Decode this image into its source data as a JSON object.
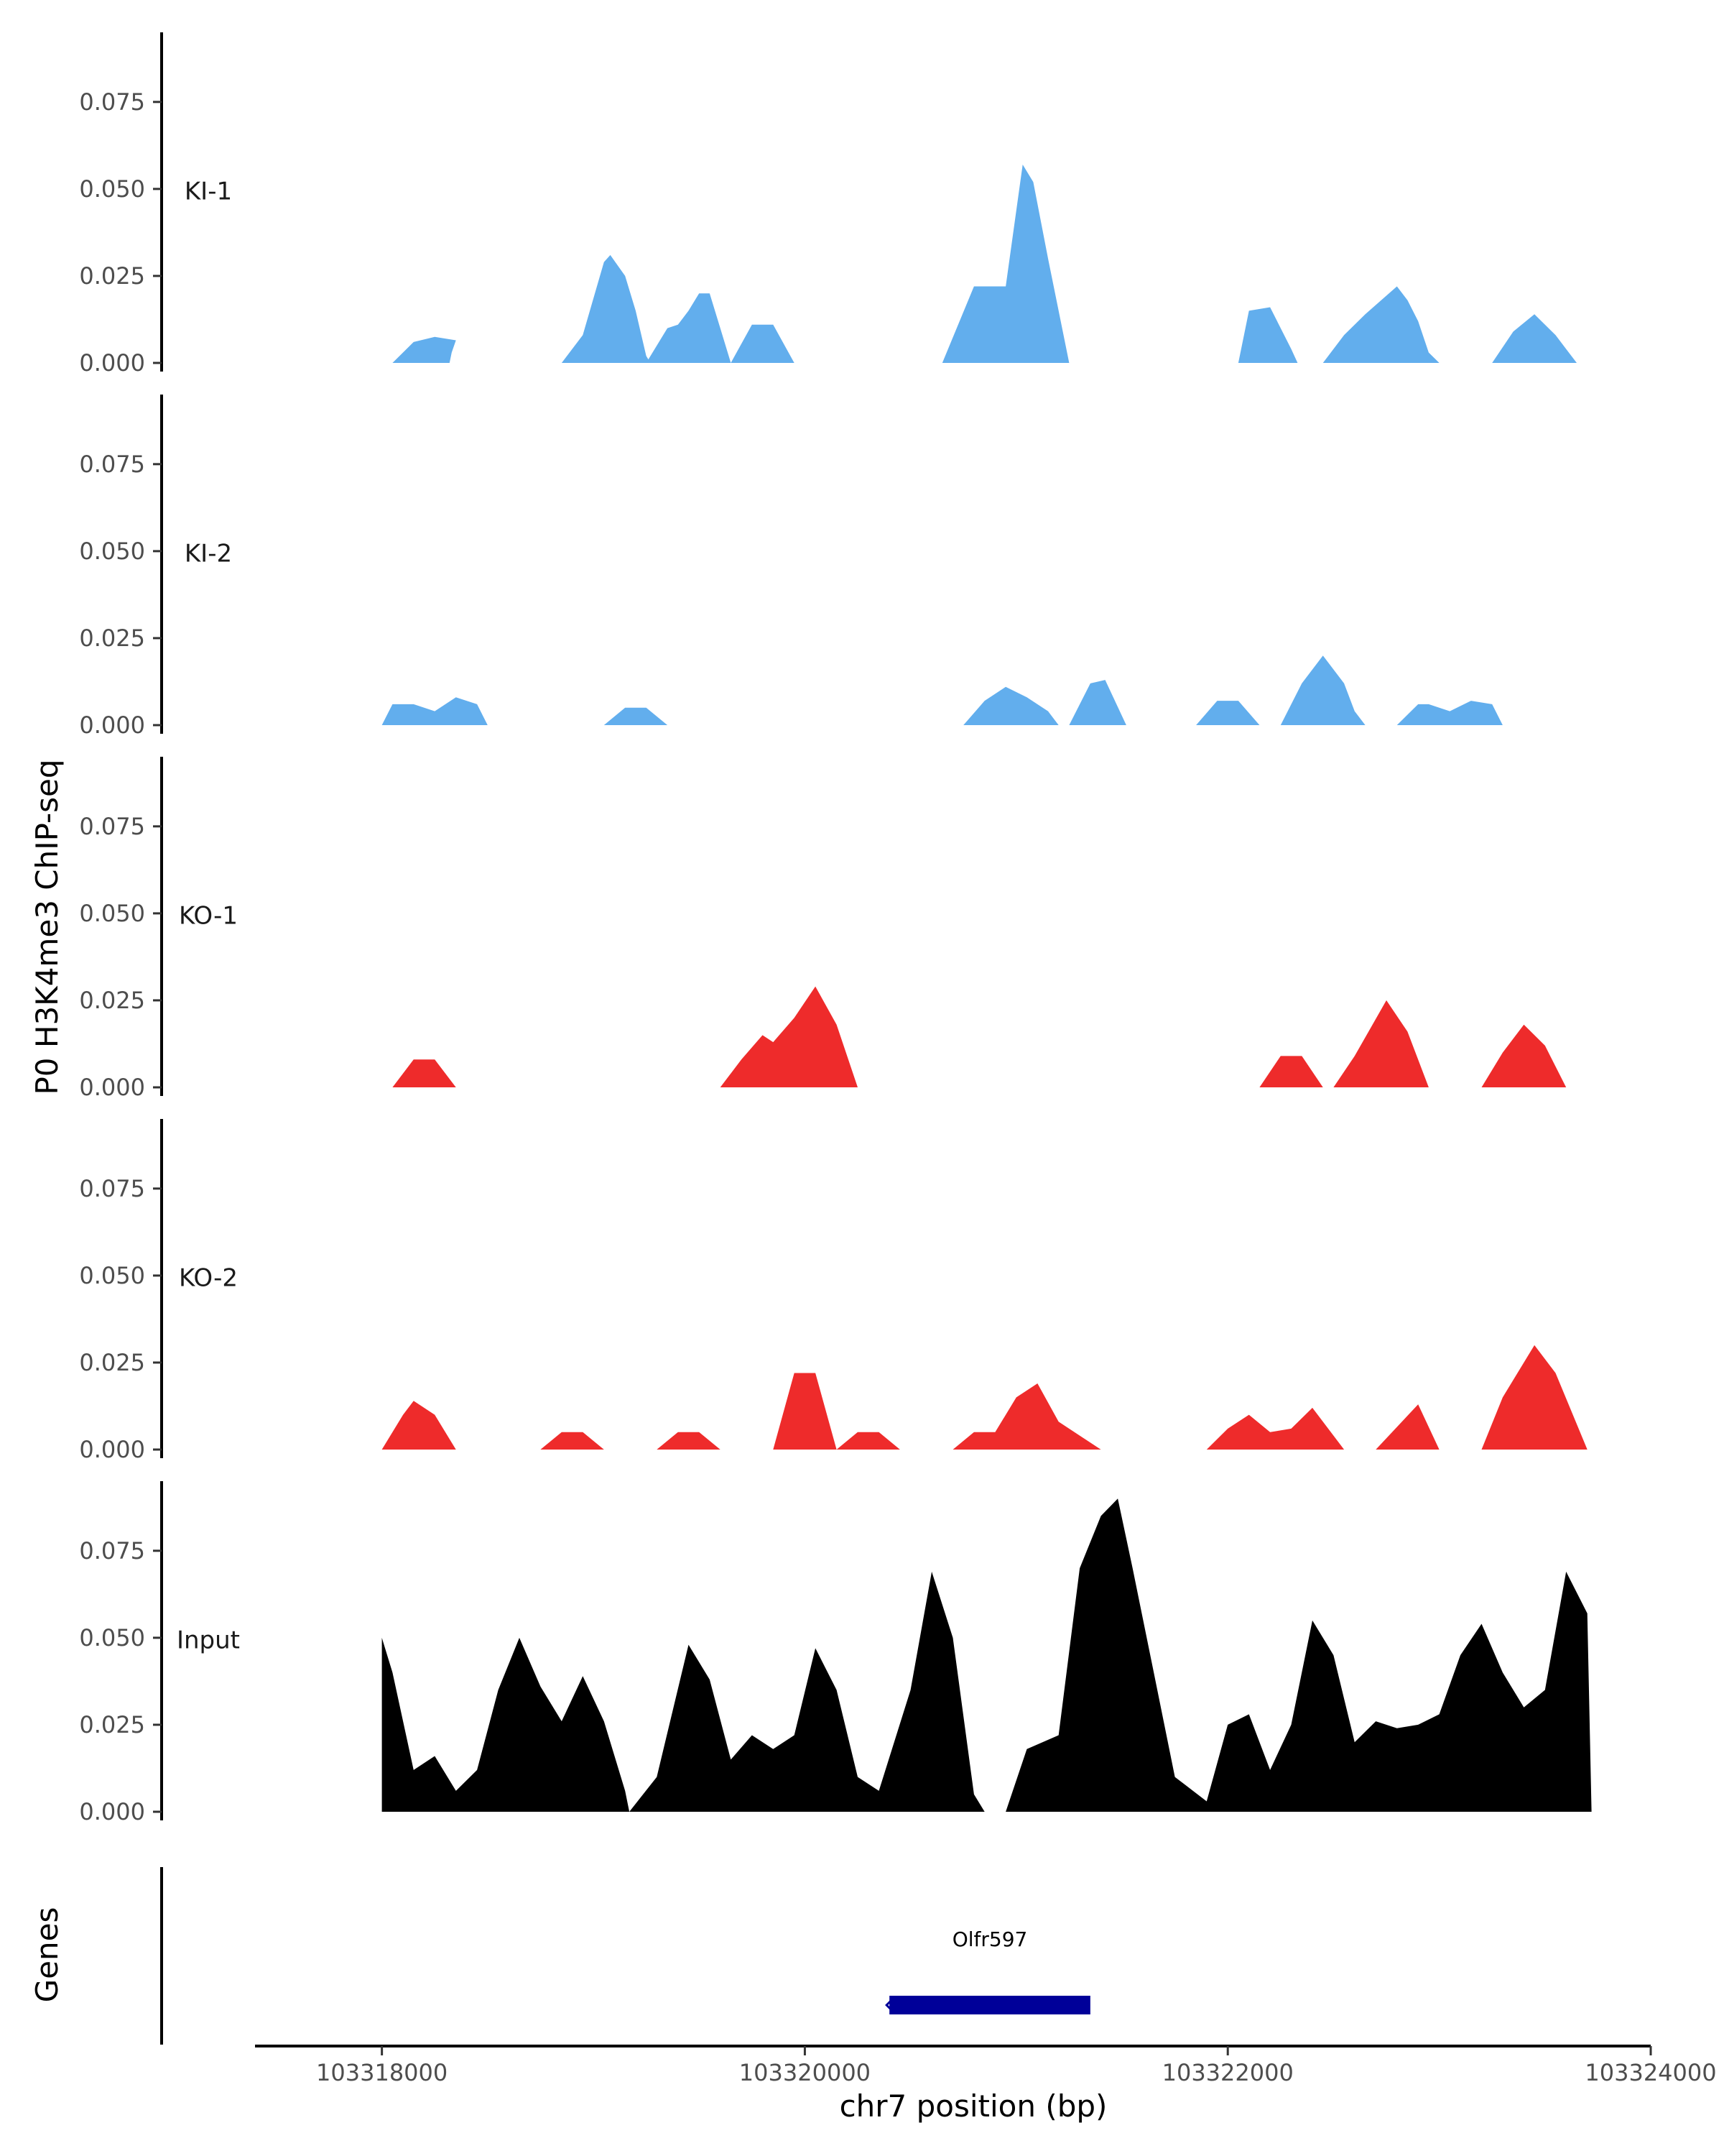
{
  "chart_data": {
    "type": "area",
    "ylabel": "P0 H3K4me3 ChIP-seq",
    "xlabel": "chr7 position (bp)",
    "xlim": [
      103317400,
      103324000
    ],
    "x_ticks": [
      103318000,
      103320000,
      103322000,
      103324000
    ],
    "x_tick_labels": [
      "103318000",
      "103320000",
      "103322000",
      "103324000"
    ],
    "ylim": [
      0,
      0.095
    ],
    "y_ticks": [
      0,
      0.025,
      0.05,
      0.075
    ],
    "y_tick_labels": [
      "0.000",
      "0.025",
      "0.050",
      "0.075"
    ],
    "colors": {
      "KI": "#62aeed",
      "KO": "#ee2b2b",
      "Input": "#000000",
      "gene": "#000099",
      "axis": "#000000"
    },
    "tracks": [
      {
        "name": "KI-1",
        "color": "#62aeed",
        "segments": [
          [
            [
              103318050,
              0
            ],
            [
              103318150,
              0.006
            ],
            [
              103318250,
              0.0075
            ],
            [
              103318350,
              0.0065
            ],
            [
              103318330,
              0.003
            ],
            [
              103318320,
              0
            ]
          ],
          [
            [
              103318850,
              0
            ],
            [
              103318950,
              0.008
            ],
            [
              103319050,
              0.029
            ],
            [
              103319080,
              0.031
            ],
            [
              103319150,
              0.025
            ],
            [
              103319200,
              0.015
            ],
            [
              103319250,
              0.002
            ],
            [
              103319270,
              0
            ]
          ],
          [
            [
              103319250,
              0
            ],
            [
              103319350,
              0.01
            ],
            [
              103319400,
              0.011
            ],
            [
              103319450,
              0.015
            ],
            [
              103319500,
              0.02
            ],
            [
              103319550,
              0.02
            ],
            [
              103319600,
              0.01
            ],
            [
              103319650,
              0
            ]
          ],
          [
            [
              103319650,
              0
            ],
            [
              103319750,
              0.011
            ],
            [
              103319850,
              0.011
            ],
            [
              103319950,
              0
            ]
          ],
          [
            [
              103320650,
              0
            ],
            [
              103320800,
              0.022
            ],
            [
              103320950,
              0.022
            ],
            [
              103321030,
              0.057
            ],
            [
              103321080,
              0.052
            ],
            [
              103321150,
              0.03
            ],
            [
              103321250,
              0
            ]
          ],
          [
            [
              103322050,
              0
            ],
            [
              103322100,
              0.015
            ],
            [
              103322200,
              0.016
            ],
            [
              103322300,
              0.004
            ],
            [
              103322330,
              0
            ]
          ],
          [
            [
              103322450,
              0
            ],
            [
              103322550,
              0.008
            ],
            [
              103322650,
              0.014
            ],
            [
              103322800,
              0.022
            ],
            [
              103322850,
              0.018
            ],
            [
              103322900,
              0.012
            ],
            [
              103322950,
              0.003
            ],
            [
              103323000,
              0
            ]
          ],
          [
            [
              103323250,
              0
            ],
            [
              103323350,
              0.009
            ],
            [
              103323450,
              0.014
            ],
            [
              103323550,
              0.008
            ],
            [
              103323600,
              0.004
            ],
            [
              103323650,
              0
            ]
          ]
        ]
      },
      {
        "name": "KI-2",
        "color": "#62aeed",
        "segments": [
          [
            [
              103318000,
              0
            ],
            [
              103318050,
              0.006
            ],
            [
              103318150,
              0.006
            ],
            [
              103318250,
              0.004
            ],
            [
              103318350,
              0.008
            ],
            [
              103318450,
              0.006
            ],
            [
              103318500,
              0
            ]
          ],
          [
            [
              103319050,
              0
            ],
            [
              103319150,
              0.005
            ],
            [
              103319250,
              0.005
            ],
            [
              103319350,
              0
            ]
          ],
          [
            [
              103320750,
              0
            ],
            [
              103320850,
              0.007
            ],
            [
              103320950,
              0.011
            ],
            [
              103321050,
              0.008
            ],
            [
              103321150,
              0.004
            ],
            [
              103321200,
              0
            ]
          ],
          [
            [
              103321250,
              0
            ],
            [
              103321350,
              0.012
            ],
            [
              103321420,
              0.013
            ],
            [
              103321520,
              0
            ]
          ],
          [
            [
              103321850,
              0
            ],
            [
              103321950,
              0.007
            ],
            [
              103322050,
              0.007
            ],
            [
              103322150,
              0
            ]
          ],
          [
            [
              103322250,
              0
            ],
            [
              103322350,
              0.012
            ],
            [
              103322450,
              0.02
            ],
            [
              103322550,
              0.012
            ],
            [
              103322600,
              0.004
            ],
            [
              103322650,
              0
            ]
          ],
          [
            [
              103322800,
              0
            ],
            [
              103322900,
              0.006
            ],
            [
              103322950,
              0.006
            ],
            [
              103323050,
              0.004
            ],
            [
              103323150,
              0.007
            ],
            [
              103323250,
              0.006
            ],
            [
              103323300,
              0
            ]
          ]
        ]
      },
      {
        "name": "KO-1",
        "color": "#ee2b2b",
        "segments": [
          [
            [
              103318050,
              0
            ],
            [
              103318150,
              0.008
            ],
            [
              103318250,
              0.008
            ],
            [
              103318350,
              0
            ]
          ],
          [
            [
              103319600,
              0
            ],
            [
              103319700,
              0.008
            ],
            [
              103319800,
              0.015
            ],
            [
              103319850,
              0.013
            ],
            [
              103319950,
              0.02
            ],
            [
              103320050,
              0.029
            ],
            [
              103320150,
              0.018
            ],
            [
              103320250,
              0
            ]
          ],
          [
            [
              103322150,
              0
            ],
            [
              103322250,
              0.009
            ],
            [
              103322350,
              0.009
            ],
            [
              103322450,
              0
            ]
          ],
          [
            [
              103322500,
              0
            ],
            [
              103322600,
              0.009
            ],
            [
              103322750,
              0.025
            ],
            [
              103322850,
              0.016
            ],
            [
              103322950,
              0
            ]
          ],
          [
            [
              103323200,
              0
            ],
            [
              103323300,
              0.01
            ],
            [
              103323400,
              0.018
            ],
            [
              103323500,
              0.012
            ],
            [
              103323600,
              0
            ]
          ]
        ]
      },
      {
        "name": "KO-2",
        "color": "#ee2b2b",
        "segments": [
          [
            [
              103318000,
              0
            ],
            [
              103318100,
              0.01
            ],
            [
              103318150,
              0.014
            ],
            [
              103318250,
              0.01
            ],
            [
              103318350,
              0
            ]
          ],
          [
            [
              103318750,
              0
            ],
            [
              103318850,
              0.005
            ],
            [
              103318950,
              0.005
            ],
            [
              103319050,
              0
            ]
          ],
          [
            [
              103319300,
              0
            ],
            [
              103319400,
              0.005
            ],
            [
              103319500,
              0.005
            ],
            [
              103319600,
              0
            ]
          ],
          [
            [
              103319850,
              0
            ],
            [
              103319950,
              0.022
            ],
            [
              103320050,
              0.022
            ],
            [
              103320150,
              0
            ]
          ],
          [
            [
              103320150,
              0
            ],
            [
              103320250,
              0.005
            ],
            [
              103320350,
              0.005
            ],
            [
              103320450,
              0
            ]
          ],
          [
            [
              103320700,
              0
            ],
            [
              103320800,
              0.005
            ],
            [
              103320900,
              0.005
            ],
            [
              103321000,
              0.015
            ],
            [
              103321100,
              0.019
            ],
            [
              103321200,
              0.008
            ],
            [
              103321300,
              0.004
            ],
            [
              103321400,
              0
            ]
          ],
          [
            [
              103321900,
              0
            ],
            [
              103322000,
              0.006
            ],
            [
              103322100,
              0.01
            ],
            [
              103322200,
              0.005
            ],
            [
              103322300,
              0.006
            ],
            [
              103322400,
              0.012
            ],
            [
              103322500,
              0.004
            ],
            [
              103322550,
              0
            ]
          ],
          [
            [
              103322700,
              0
            ],
            [
              103322900,
              0.013
            ],
            [
              103323000,
              0
            ]
          ],
          [
            [
              103323200,
              0
            ],
            [
              103323300,
              0.015
            ],
            [
              103323450,
              0.03
            ],
            [
              103323550,
              0.022
            ],
            [
              103323700,
              0
            ]
          ]
        ]
      },
      {
        "name": "Input",
        "color": "#000000",
        "segments": [
          [
            [
              103318000,
              0
            ],
            [
              103318000,
              0.05
            ],
            [
              103318050,
              0.04
            ],
            [
              103318150,
              0.012
            ],
            [
              103318250,
              0.016
            ],
            [
              103318350,
              0.006
            ],
            [
              103318450,
              0.012
            ],
            [
              103318550,
              0.035
            ],
            [
              103318650,
              0.05
            ],
            [
              103318750,
              0.036
            ],
            [
              103318850,
              0.026
            ],
            [
              103318950,
              0.039
            ],
            [
              103319050,
              0.026
            ],
            [
              103319150,
              0.006
            ],
            [
              103319170,
              0
            ]
          ],
          [
            [
              103319170,
              0
            ],
            [
              103319300,
              0.01
            ],
            [
              103319450,
              0.048
            ],
            [
              103319550,
              0.038
            ],
            [
              103319650,
              0.015
            ],
            [
              103319750,
              0.022
            ],
            [
              103319850,
              0.018
            ],
            [
              103319950,
              0.022
            ],
            [
              103320050,
              0.047
            ],
            [
              103320150,
              0.035
            ],
            [
              103320250,
              0.01
            ],
            [
              103320350,
              0.006
            ],
            [
              103320500,
              0.035
            ],
            [
              103320600,
              0.069
            ],
            [
              103320700,
              0.05
            ],
            [
              103320800,
              0.005
            ],
            [
              103320850,
              0
            ]
          ],
          [
            [
              103320950,
              0
            ],
            [
              103321050,
              0.018
            ],
            [
              103321200,
              0.022
            ],
            [
              103321300,
              0.07
            ],
            [
              103321400,
              0.085
            ],
            [
              103321480,
              0.09
            ],
            [
              103321550,
              0.07
            ],
            [
              103321650,
              0.04
            ],
            [
              103321750,
              0.01
            ],
            [
              103321900,
              0.003
            ],
            [
              103322000,
              0.025
            ],
            [
              103322100,
              0.028
            ],
            [
              103322200,
              0.012
            ],
            [
              103322300,
              0.025
            ],
            [
              103322400,
              0.055
            ],
            [
              103322500,
              0.045
            ],
            [
              103322600,
              0.02
            ],
            [
              103322700,
              0.026
            ],
            [
              103322800,
              0.024
            ],
            [
              103322900,
              0.025
            ],
            [
              103323000,
              0.028
            ],
            [
              103323100,
              0.045
            ],
            [
              103323200,
              0.054
            ],
            [
              103323300,
              0.04
            ],
            [
              103323400,
              0.03
            ],
            [
              103323500,
              0.035
            ],
            [
              103323600,
              0.069
            ],
            [
              103323700,
              0.057
            ],
            [
              103323720,
              0
            ]
          ]
        ]
      }
    ],
    "gene_track": {
      "label": "Genes",
      "genes": [
        {
          "name": "Olfr597",
          "start": 103320400,
          "end": 103321350,
          "strand": "-"
        }
      ]
    }
  }
}
